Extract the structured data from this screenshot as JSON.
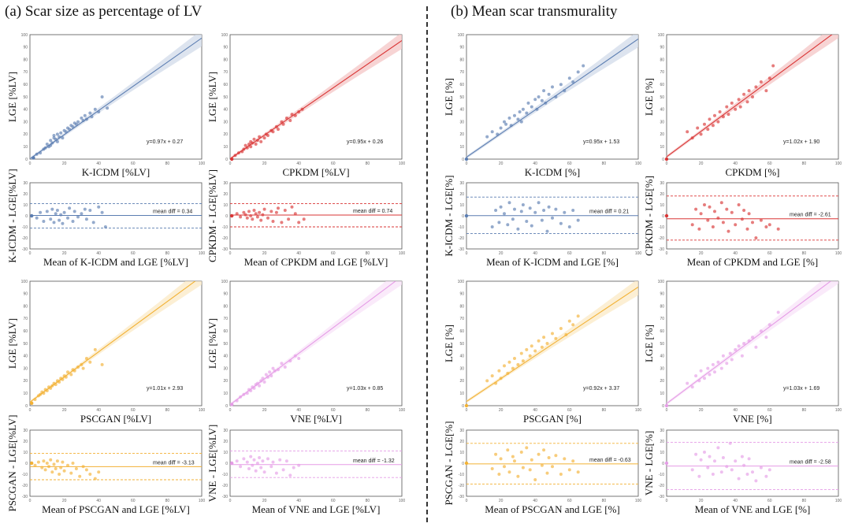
{
  "panels": {
    "a": {
      "title": "(a) Scar size as percentage of LV"
    },
    "b": {
      "title": "(b) Mean scar transmurality"
    }
  },
  "chart_data": [
    {
      "type": "scatter",
      "panel": "a",
      "subplot": "regression",
      "color": "#5B7DB1",
      "xlabel": "K-ICDM [%LV]",
      "ylabel": "LGE [%LV]",
      "xlim": [
        0,
        100
      ],
      "ylim": [
        0,
        100
      ],
      "equation": "y=0.97x + 0.27",
      "slope": 0.97,
      "intercept": 0.27,
      "x": [
        2,
        4,
        6,
        8,
        9,
        10,
        11,
        12,
        12,
        13,
        14,
        14,
        15,
        16,
        16,
        17,
        18,
        19,
        20,
        21,
        22,
        23,
        24,
        25,
        26,
        27,
        28,
        30,
        31,
        32,
        33,
        35,
        36,
        38,
        40,
        42,
        45
      ],
      "y": [
        1,
        4,
        5,
        8,
        9,
        12,
        10,
        11,
        15,
        13,
        17,
        19,
        16,
        14,
        20,
        18,
        21,
        17,
        23,
        22,
        25,
        24,
        27,
        26,
        29,
        28,
        30,
        33,
        31,
        35,
        32,
        37,
        34,
        40,
        38,
        50,
        41
      ]
    },
    {
      "type": "scatter",
      "panel": "a",
      "subplot": "bland-altman",
      "color": "#5B7DB1",
      "xlabel": "Mean of K-ICDM and LGE [%LV]",
      "ylabel": "K-ICDM - LGE[%LV]",
      "xlim": [
        0,
        100
      ],
      "ylim": [
        -30,
        30
      ],
      "annotation": "mean diff = 0.34",
      "mean_diff": 0.34,
      "loa": [
        -11,
        11
      ],
      "x": [
        1,
        4,
        6,
        8,
        10,
        12,
        13,
        14,
        15,
        16,
        17,
        18,
        19,
        20,
        22,
        23,
        25,
        26,
        28,
        30,
        32,
        33,
        35,
        37,
        40,
        42,
        44
      ],
      "y": [
        0,
        -2,
        3,
        -5,
        4,
        -3,
        6,
        -6,
        2,
        5,
        -4,
        1,
        -7,
        3,
        -2,
        7,
        -5,
        4,
        -1,
        2,
        6,
        -3,
        5,
        -6,
        8,
        3,
        -10
      ]
    },
    {
      "type": "scatter",
      "panel": "a",
      "subplot": "regression",
      "color": "#D93535",
      "xlabel": "CPKDM [%LV]",
      "ylabel": "LGE [%LV]",
      "xlim": [
        0,
        100
      ],
      "ylim": [
        0,
        100
      ],
      "equation": "y=0.95x + 0.26",
      "slope": 0.95,
      "intercept": 0.26,
      "x": [
        1,
        3,
        5,
        7,
        8,
        9,
        10,
        11,
        12,
        12,
        13,
        14,
        15,
        16,
        17,
        18,
        20,
        21,
        22,
        24,
        25,
        27,
        28,
        30,
        31,
        33,
        35,
        36,
        38,
        40,
        42
      ],
      "y": [
        0,
        3,
        5,
        6,
        8,
        11,
        9,
        12,
        10,
        14,
        13,
        16,
        12,
        15,
        18,
        14,
        17,
        20,
        19,
        23,
        22,
        26,
        24,
        30,
        28,
        33,
        31,
        36,
        35,
        38,
        40
      ]
    },
    {
      "type": "scatter",
      "panel": "a",
      "subplot": "bland-altman",
      "color": "#D93535",
      "xlabel": "Mean of CPKDM and LGE [%LV]",
      "ylabel": "CPKDM - LGE[%LV]",
      "xlim": [
        0,
        100
      ],
      "ylim": [
        -30,
        30
      ],
      "annotation": "mean diff = 0.74",
      "mean_diff": 0.74,
      "loa": [
        -10,
        11
      ],
      "x": [
        1,
        4,
        6,
        8,
        9,
        10,
        11,
        12,
        13,
        14,
        15,
        16,
        17,
        18,
        19,
        20,
        22,
        24,
        25,
        27,
        28,
        30,
        32,
        34,
        36,
        38,
        40,
        43
      ],
      "y": [
        0,
        2,
        -1,
        3,
        1,
        -2,
        4,
        0,
        -3,
        5,
        2,
        -1,
        3,
        -4,
        1,
        6,
        -2,
        4,
        -5,
        3,
        7,
        -6,
        5,
        -3,
        8,
        2,
        -6,
        -3
      ]
    },
    {
      "type": "scatter",
      "panel": "a",
      "subplot": "regression",
      "color": "#F2B134",
      "xlabel": "PSCGAN [%LV]",
      "ylabel": "LGE [%LV]",
      "xlim": [
        0,
        100
      ],
      "ylim": [
        0,
        100
      ],
      "equation": "y=1.01x + 2.93",
      "slope": 1.01,
      "intercept": 2.93,
      "x": [
        1,
        3,
        5,
        6,
        7,
        8,
        9,
        10,
        11,
        12,
        13,
        14,
        15,
        16,
        17,
        18,
        19,
        20,
        21,
        22,
        24,
        25,
        26,
        28,
        30,
        31,
        33,
        35,
        38,
        42
      ],
      "y": [
        2,
        5,
        8,
        9,
        11,
        10,
        13,
        12,
        15,
        14,
        16,
        18,
        17,
        20,
        19,
        22,
        21,
        24,
        23,
        27,
        25,
        29,
        28,
        31,
        33,
        30,
        38,
        35,
        45,
        33
      ]
    },
    {
      "type": "scatter",
      "panel": "a",
      "subplot": "bland-altman",
      "color": "#F2B134",
      "xlabel": "Mean of PSCGAN and LGE [%LV]",
      "ylabel": "PSCGAN - LGE[%LV]",
      "xlim": [
        0,
        100
      ],
      "ylim": [
        -30,
        30
      ],
      "annotation": "mean diff = -3.13",
      "mean_diff": -3.13,
      "loa": [
        -15,
        9
      ],
      "x": [
        1,
        3,
        5,
        7,
        8,
        9,
        10,
        11,
        12,
        13,
        14,
        15,
        16,
        17,
        18,
        19,
        20,
        22,
        24,
        25,
        27,
        29,
        31,
        33,
        35,
        38,
        40
      ],
      "y": [
        0,
        -2,
        1,
        -4,
        2,
        -6,
        0,
        -3,
        3,
        -8,
        -1,
        -5,
        2,
        -10,
        -4,
        1,
        -7,
        -2,
        -9,
        0,
        -5,
        -12,
        -3,
        -6,
        -10,
        -14,
        -8
      ]
    },
    {
      "type": "scatter",
      "panel": "a",
      "subplot": "regression",
      "color": "#E59CE6",
      "xlabel": "VNE [%LV]",
      "ylabel": "LGE [%LV]",
      "xlim": [
        0,
        100
      ],
      "ylim": [
        0,
        100
      ],
      "equation": "y=1.03x + 0.85",
      "slope": 1.03,
      "intercept": 0.85,
      "x": [
        1,
        4,
        6,
        8,
        10,
        11,
        12,
        13,
        14,
        15,
        16,
        17,
        18,
        19,
        20,
        21,
        22,
        23,
        24,
        25,
        26,
        28,
        30,
        32,
        35,
        38,
        40
      ],
      "y": [
        1,
        4,
        7,
        9,
        10,
        13,
        12,
        15,
        14,
        17,
        18,
        16,
        20,
        22,
        19,
        25,
        23,
        27,
        24,
        30,
        28,
        29,
        34,
        31,
        36,
        40,
        38
      ]
    },
    {
      "type": "scatter",
      "panel": "a",
      "subplot": "bland-altman",
      "color": "#E59CE6",
      "xlabel": "Mean of VNE and LGE [%LV]",
      "ylabel": "VNE - LGE[%LV]",
      "xlim": [
        0,
        100
      ],
      "ylim": [
        -30,
        30
      ],
      "annotation": "mean diff = -1.32",
      "mean_diff": -1.32,
      "loa": [
        -13,
        11
      ],
      "x": [
        1,
        4,
        6,
        8,
        10,
        11,
        12,
        13,
        14,
        15,
        16,
        17,
        18,
        19,
        20,
        22,
        24,
        25,
        27,
        29,
        31,
        33,
        35,
        37,
        40
      ],
      "y": [
        0,
        2,
        -3,
        4,
        1,
        -5,
        6,
        -2,
        3,
        -7,
        0,
        5,
        -4,
        2,
        -8,
        4,
        -3,
        1,
        -9,
        3,
        -6,
        2,
        -11,
        -4,
        -2
      ]
    },
    {
      "type": "scatter",
      "panel": "b",
      "subplot": "regression",
      "color": "#5B7DB1",
      "xlabel": "K-ICDM [%]",
      "ylabel": "LGE [%]",
      "xlim": [
        0,
        100
      ],
      "ylim": [
        0,
        100
      ],
      "equation": "y=0.95x + 1.53",
      "slope": 0.95,
      "intercept": 1.53,
      "x": [
        0,
        12,
        15,
        18,
        20,
        22,
        23,
        25,
        26,
        28,
        30,
        31,
        32,
        33,
        35,
        36,
        38,
        40,
        41,
        42,
        44,
        45,
        46,
        48,
        50,
        52,
        55,
        57,
        60,
        62,
        65,
        68
      ],
      "y": [
        0,
        18,
        22,
        20,
        25,
        30,
        28,
        33,
        27,
        35,
        32,
        38,
        30,
        40,
        37,
        45,
        42,
        48,
        40,
        50,
        47,
        55,
        45,
        52,
        58,
        50,
        60,
        55,
        65,
        62,
        70,
        75
      ]
    },
    {
      "type": "scatter",
      "panel": "b",
      "subplot": "bland-altman",
      "color": "#5B7DB1",
      "xlabel": "Mean of K-ICDM and LGE [%]",
      "ylabel": "K-ICDM - LGE[%]",
      "xlim": [
        0,
        100
      ],
      "ylim": [
        -30,
        30
      ],
      "annotation": "mean diff = 0.21",
      "mean_diff": 0.21,
      "loa": [
        -16,
        17
      ],
      "x": [
        0,
        15,
        17,
        19,
        20,
        22,
        24,
        25,
        27,
        28,
        30,
        32,
        33,
        35,
        37,
        38,
        40,
        42,
        44,
        45,
        47,
        48,
        50,
        52,
        55,
        57,
        60,
        62,
        65
      ],
      "y": [
        0,
        -10,
        5,
        -6,
        8,
        2,
        -8,
        12,
        -3,
        6,
        -12,
        4,
        10,
        -5,
        7,
        -9,
        3,
        12,
        -4,
        5,
        -14,
        8,
        -2,
        6,
        -7,
        3,
        -10,
        5,
        -4
      ]
    },
    {
      "type": "scatter",
      "panel": "b",
      "subplot": "regression",
      "color": "#D93535",
      "xlabel": "CPKDM [%]",
      "ylabel": "LGE [%]",
      "xlim": [
        0,
        100
      ],
      "ylim": [
        0,
        100
      ],
      "equation": "y=1.02x + 1.90",
      "slope": 1.02,
      "intercept": 1.9,
      "x": [
        0,
        12,
        15,
        18,
        20,
        22,
        24,
        25,
        27,
        28,
        30,
        31,
        33,
        35,
        36,
        38,
        40,
        42,
        43,
        45,
        47,
        48,
        50,
        52,
        55,
        58,
        60,
        62
      ],
      "y": [
        0,
        22,
        17,
        25,
        20,
        28,
        24,
        32,
        27,
        35,
        30,
        38,
        34,
        42,
        36,
        45,
        40,
        48,
        42,
        52,
        46,
        55,
        50,
        58,
        62,
        55,
        65,
        75
      ]
    },
    {
      "type": "scatter",
      "panel": "b",
      "subplot": "bland-altman",
      "color": "#D93535",
      "xlabel": "Mean of CPKDM and LGE [%]",
      "ylabel": "CPKDM - LGE[%]",
      "xlim": [
        0,
        100
      ],
      "ylim": [
        -30,
        30
      ],
      "annotation": "mean diff = -2.61",
      "mean_diff": -2.61,
      "loa": [
        -22,
        18
      ],
      "x": [
        0,
        15,
        17,
        19,
        20,
        22,
        24,
        25,
        27,
        28,
        30,
        32,
        33,
        35,
        36,
        38,
        40,
        42,
        44,
        45,
        47,
        48,
        50,
        52,
        55,
        58,
        60,
        65
      ],
      "y": [
        0,
        -8,
        6,
        -12,
        2,
        10,
        -4,
        8,
        -10,
        4,
        -2,
        12,
        -6,
        6,
        -14,
        3,
        -8,
        10,
        -3,
        5,
        -12,
        2,
        -6,
        -20,
        -4,
        -10,
        -8,
        -12
      ]
    },
    {
      "type": "scatter",
      "panel": "b",
      "subplot": "regression",
      "color": "#F2B134",
      "xlabel": "PSCGAN [%]",
      "ylabel": "LGE [%]",
      "xlim": [
        0,
        100
      ],
      "ylim": [
        0,
        100
      ],
      "equation": "y=0.92x + 3.37",
      "slope": 0.92,
      "intercept": 3.37,
      "x": [
        0,
        12,
        15,
        17,
        19,
        20,
        22,
        24,
        25,
        27,
        28,
        30,
        32,
        33,
        35,
        37,
        38,
        40,
        42,
        44,
        45,
        47,
        50,
        52,
        55,
        58,
        60,
        62,
        65
      ],
      "y": [
        0,
        20,
        24,
        18,
        28,
        22,
        32,
        26,
        35,
        30,
        38,
        33,
        42,
        36,
        45,
        40,
        48,
        44,
        52,
        47,
        55,
        50,
        58,
        54,
        62,
        57,
        68,
        65,
        72
      ]
    },
    {
      "type": "scatter",
      "panel": "b",
      "subplot": "bland-altman",
      "color": "#F2B134",
      "xlabel": "Mean of PSCGAN and LGE [%]",
      "ylabel": "PSCGAN - LGE[%]",
      "xlim": [
        0,
        100
      ],
      "ylim": [
        -30,
        30
      ],
      "annotation": "mean diff = -0.63",
      "mean_diff": -0.63,
      "loa": [
        -19,
        18
      ],
      "x": [
        0,
        15,
        17,
        19,
        20,
        22,
        24,
        25,
        27,
        28,
        30,
        32,
        33,
        35,
        37,
        38,
        40,
        42,
        44,
        45,
        47,
        48,
        50,
        52,
        55,
        57,
        60,
        62,
        65
      ],
      "y": [
        0,
        -5,
        8,
        -10,
        4,
        -3,
        12,
        -8,
        6,
        2,
        -12,
        10,
        -4,
        14,
        -6,
        3,
        -15,
        8,
        -2,
        12,
        -9,
        5,
        -3,
        7,
        -10,
        4,
        -6,
        2,
        -8
      ]
    },
    {
      "type": "scatter",
      "panel": "b",
      "subplot": "regression",
      "color": "#E59CE6",
      "xlabel": "VNE [%]",
      "ylabel": "LGE [%]",
      "xlim": [
        0,
        100
      ],
      "ylim": [
        0,
        100
      ],
      "equation": "y=1.03x + 1.69",
      "slope": 1.03,
      "intercept": 1.69,
      "x": [
        0,
        12,
        15,
        17,
        19,
        20,
        22,
        24,
        25,
        27,
        28,
        30,
        32,
        33,
        35,
        37,
        38,
        40,
        42,
        44,
        45,
        48,
        50,
        52,
        55,
        58,
        60,
        65
      ],
      "y": [
        0,
        18,
        15,
        24,
        20,
        28,
        22,
        30,
        25,
        33,
        27,
        35,
        30,
        40,
        34,
        42,
        37,
        45,
        48,
        40,
        50,
        52,
        55,
        47,
        60,
        55,
        65,
        75
      ]
    },
    {
      "type": "scatter",
      "panel": "b",
      "subplot": "bland-altman",
      "color": "#E59CE6",
      "xlabel": "Mean of VNE and LGE [%]",
      "ylabel": "VNE - LGE[%]",
      "xlim": [
        0,
        100
      ],
      "ylim": [
        -30,
        30
      ],
      "annotation": "mean diff = -2.58",
      "mean_diff": -2.58,
      "loa": [
        -24,
        19
      ],
      "x": [
        0,
        15,
        17,
        19,
        20,
        22,
        24,
        25,
        27,
        28,
        30,
        32,
        33,
        35,
        37,
        38,
        40,
        42,
        44,
        45,
        47,
        48,
        50,
        52,
        55,
        58,
        60
      ],
      "y": [
        0,
        -6,
        8,
        -12,
        3,
        10,
        -4,
        6,
        -10,
        2,
        14,
        -8,
        5,
        -3,
        18,
        -6,
        2,
        -14,
        6,
        -2,
        -10,
        4,
        -8,
        -16,
        -4,
        -12,
        -6
      ]
    }
  ]
}
